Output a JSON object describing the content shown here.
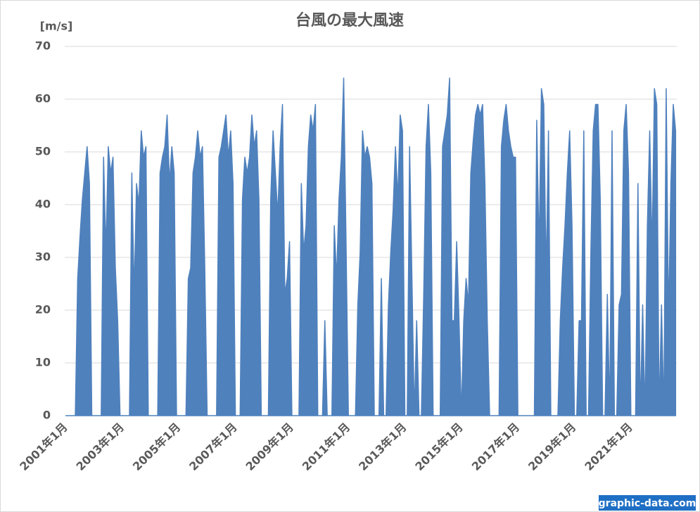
{
  "chart_data": {
    "type": "area",
    "title": "台風の最大風速",
    "y_label": "[m/s]",
    "watermark": "graphic-data.com",
    "color": "#4f81bd",
    "grid": true,
    "ylim": [
      0,
      70
    ],
    "yticks": [
      0,
      10,
      20,
      30,
      40,
      50,
      60,
      70
    ],
    "categories": [
      "2001年1月",
      null,
      null,
      null,
      null,
      null,
      null,
      null,
      null,
      null,
      null,
      null,
      null,
      null,
      null,
      null,
      null,
      null,
      null,
      null,
      null,
      null,
      null,
      null,
      "2003年1月",
      null,
      null,
      null,
      null,
      null,
      null,
      null,
      null,
      null,
      null,
      null,
      null,
      null,
      null,
      null,
      null,
      null,
      null,
      null,
      null,
      null,
      null,
      null,
      "2005年1月",
      null,
      null,
      null,
      null,
      null,
      null,
      null,
      null,
      null,
      null,
      null,
      null,
      null,
      null,
      null,
      null,
      null,
      null,
      null,
      null,
      null,
      null,
      null,
      "2007年1月",
      null,
      null,
      null,
      null,
      null,
      null,
      null,
      null,
      null,
      null,
      null,
      null,
      null,
      null,
      null,
      null,
      null,
      null,
      null,
      null,
      null,
      null,
      null,
      "2009年1月",
      null,
      null,
      null,
      null,
      null,
      null,
      null,
      null,
      null,
      null,
      null,
      null,
      null,
      null,
      null,
      null,
      null,
      null,
      null,
      null,
      null,
      null,
      null,
      "2011年1月",
      null,
      null,
      null,
      null,
      null,
      null,
      null,
      null,
      null,
      null,
      null,
      null,
      null,
      null,
      null,
      null,
      null,
      null,
      null,
      null,
      null,
      null,
      null,
      "2013年1月",
      null,
      null,
      null,
      null,
      null,
      null,
      null,
      null,
      null,
      null,
      null,
      null,
      null,
      null,
      null,
      null,
      null,
      null,
      null,
      null,
      null,
      null,
      null,
      "2015年1月",
      null,
      null,
      null,
      null,
      null,
      null,
      null,
      null,
      null,
      null,
      null,
      null,
      null,
      null,
      null,
      null,
      null,
      null,
      null,
      null,
      null,
      null,
      null,
      "2017年1月",
      null,
      null,
      null,
      null,
      null,
      null,
      null,
      null,
      null,
      null,
      null,
      null,
      null,
      null,
      null,
      null,
      null,
      null,
      null,
      null,
      null,
      null,
      null,
      "2019年1月",
      null,
      null,
      null,
      null,
      null,
      null,
      null,
      null,
      null,
      null,
      null,
      null,
      null,
      null,
      null,
      null,
      null,
      null,
      null,
      null,
      null,
      null,
      null,
      "2021年1月",
      null,
      null,
      null,
      null,
      null,
      null,
      null,
      null,
      null,
      null,
      null,
      null,
      null,
      null,
      null,
      null,
      null,
      null,
      null
    ],
    "values": [
      0,
      0,
      0,
      0,
      0,
      26,
      34,
      41,
      46,
      51,
      44,
      0,
      0,
      0,
      0,
      0,
      49,
      31,
      51,
      46,
      49,
      28,
      18,
      0,
      0,
      0,
      0,
      0,
      46,
      23,
      44,
      40,
      54,
      49,
      51,
      0,
      0,
      0,
      0,
      0,
      46,
      49,
      51,
      57,
      44,
      51,
      46,
      0,
      0,
      0,
      0,
      0,
      26,
      28,
      46,
      49,
      54,
      49,
      51,
      28,
      0,
      0,
      0,
      0,
      0,
      49,
      51,
      54,
      57,
      49,
      54,
      44,
      0,
      0,
      0,
      41,
      49,
      46,
      49,
      57,
      51,
      54,
      41,
      0,
      0,
      0,
      0,
      41,
      54,
      46,
      38,
      51,
      59,
      23,
      26,
      33,
      0,
      0,
      0,
      0,
      44,
      31,
      36,
      51,
      57,
      54,
      59,
      0,
      0,
      0,
      18,
      0,
      0,
      0,
      36,
      26,
      41,
      49,
      64,
      33,
      0,
      0,
      0,
      0,
      21,
      31,
      54,
      49,
      51,
      49,
      44,
      0,
      0,
      0,
      26,
      0,
      0,
      21,
      31,
      39,
      51,
      41,
      57,
      54,
      0,
      0,
      51,
      26,
      0,
      18,
      0,
      0,
      23,
      51,
      59,
      46,
      0,
      0,
      0,
      0,
      51,
      54,
      57,
      64,
      18,
      18,
      33,
      18,
      0,
      18,
      26,
      21,
      46,
      52,
      57,
      59,
      57,
      59,
      44,
      18,
      0,
      0,
      0,
      0,
      0,
      51,
      56,
      59,
      54,
      51,
      49,
      49,
      0,
      0,
      0,
      0,
      0,
      0,
      0,
      0,
      56,
      31,
      62,
      59,
      26,
      54,
      0,
      0,
      0,
      0,
      18,
      28,
      36,
      46,
      54,
      36,
      0,
      0,
      18,
      18,
      54,
      0,
      0,
      31,
      54,
      59,
      59,
      41,
      0,
      0,
      23,
      0,
      54,
      0,
      0,
      21,
      23,
      54,
      59,
      46,
      0,
      0,
      0,
      44,
      0,
      21,
      0,
      36,
      54,
      31,
      62,
      59,
      0,
      21,
      0,
      62,
      18,
      44,
      59,
      54
    ]
  }
}
